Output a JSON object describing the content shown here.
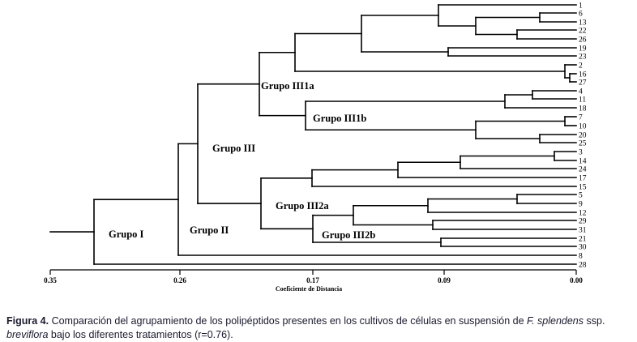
{
  "chart_data": {
    "type": "dendrogram",
    "xlabel": "Coeficiente de Distancia",
    "xlim": [
      0.35,
      0.0
    ],
    "ticks": [
      "0.35",
      "0.26",
      "0.17",
      "0.09",
      "0.00"
    ],
    "tick_values": [
      0.35,
      0.26,
      0.17,
      0.09,
      0.0
    ],
    "leaves": [
      "1",
      "6",
      "13",
      "22",
      "26",
      "19",
      "23",
      "2",
      "16",
      "27",
      "4",
      "11",
      "18",
      "7",
      "10",
      "20",
      "25",
      "3",
      "14",
      "24",
      "17",
      "15",
      "5",
      "9",
      "12",
      "29",
      "31",
      "21",
      "30",
      "8",
      "28"
    ],
    "groups": [
      "Grupo I",
      "Grupo II",
      "Grupo III",
      "Grupo III1a",
      "Grupo III1b",
      "Grupo III2a",
      "Grupo III2b"
    ]
  },
  "caption": {
    "label": "Figura 4.",
    "text_before": " Comparación del agrupamiento de los polipéptidos presentes en los cultivos de células en suspensión de ",
    "species": "F. splendens",
    "text_mid": " ssp. ",
    "subspecies": "breviflora",
    "text_after": " bajo los diferentes tratamientos (r=0.76)."
  }
}
